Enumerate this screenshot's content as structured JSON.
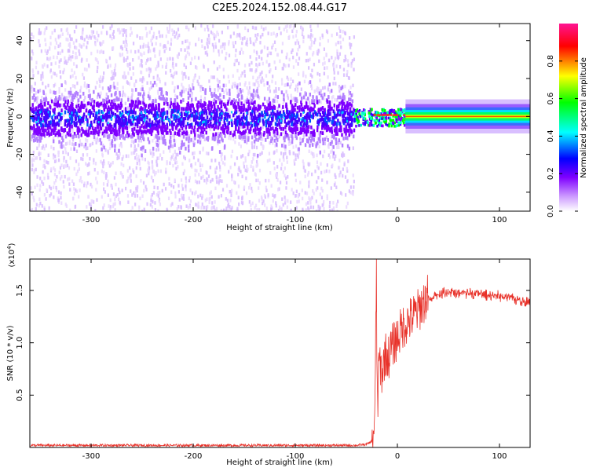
{
  "title": "C2E5.2024.152.08.44.G17",
  "chart_data": [
    {
      "type": "heatmap",
      "xlabel": "Height of straight line (km)",
      "ylabel": "Frequency (Hz)",
      "xlim": [
        -360,
        130
      ],
      "ylim": [
        -50,
        49
      ],
      "xticks": [
        -300,
        -200,
        -100,
        0,
        100
      ],
      "yticks": [
        -40,
        -20,
        0,
        20,
        40
      ],
      "noise_region_x": [
        -360,
        -43
      ],
      "transition_region_x": [
        -43,
        10
      ],
      "tone_region_x": [
        10,
        130
      ],
      "tone_frequency": 0,
      "colorbar": {
        "label": "Normalized spectral amplitude",
        "range": [
          0,
          1
        ],
        "ticks": [
          0.0,
          0.2,
          0.4,
          0.6,
          0.8
        ],
        "colors": [
          "#ffffff",
          "#cc99ff",
          "#7f00ff",
          "#0000ff",
          "#00ffff",
          "#00ff00",
          "#ffff00",
          "#ff0000",
          "#ff1493"
        ]
      }
    },
    {
      "type": "line",
      "xlabel": "Height of straight line (km)",
      "ylabel": "SNR (10 * v/v)",
      "exponent_label": "(x10",
      "exponent_sup": "4",
      "exponent_close": ")",
      "xlim": [
        -360,
        130
      ],
      "ylim": [
        0,
        1.8
      ],
      "xticks": [
        -300,
        -200,
        -100,
        0,
        100
      ],
      "yticks": [
        0.5,
        1.0,
        1.5
      ],
      "ytick_labels": [
        "0.5",
        "1.0",
        "1.5"
      ],
      "color": "#e8322a",
      "series": [
        {
          "x": [
            -360,
            -300,
            -200,
            -100,
            -40,
            -30,
            -25,
            -22,
            -20.5,
            -20,
            -19,
            -18,
            -15,
            -12,
            -9,
            -6,
            -3,
            0,
            5,
            10,
            15,
            20,
            25,
            30,
            40,
            50,
            60,
            70,
            80,
            90,
            100,
            110,
            120,
            130
          ],
          "values": [
            0.02,
            0.02,
            0.02,
            0.02,
            0.02,
            0.03,
            0.06,
            0.25,
            1.8,
            0.6,
            0.45,
            0.85,
            0.7,
            0.9,
            0.85,
            0.95,
            1.0,
            1.05,
            1.15,
            1.2,
            1.25,
            1.3,
            1.38,
            1.45,
            1.49,
            1.51,
            1.5,
            1.5,
            1.49,
            1.48,
            1.47,
            1.45,
            1.43,
            1.41
          ]
        }
      ]
    }
  ]
}
